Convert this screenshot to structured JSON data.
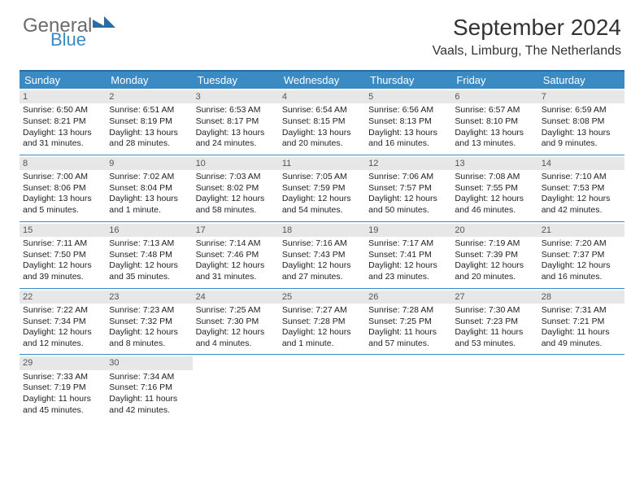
{
  "logo": {
    "part1": "General",
    "part2": "Blue"
  },
  "title": "September 2024",
  "location": "Vaals, Limburg, The Netherlands",
  "colors": {
    "header_bg": "#3a8ac4",
    "header_border": "#2b6ca3",
    "daynum_bg": "#e7e7e7",
    "text": "#222222"
  },
  "day_names": [
    "Sunday",
    "Monday",
    "Tuesday",
    "Wednesday",
    "Thursday",
    "Friday",
    "Saturday"
  ],
  "days": [
    {
      "n": 1,
      "sr": "6:50 AM",
      "ss": "8:21 PM",
      "dl": "13 hours and 31 minutes."
    },
    {
      "n": 2,
      "sr": "6:51 AM",
      "ss": "8:19 PM",
      "dl": "13 hours and 28 minutes."
    },
    {
      "n": 3,
      "sr": "6:53 AM",
      "ss": "8:17 PM",
      "dl": "13 hours and 24 minutes."
    },
    {
      "n": 4,
      "sr": "6:54 AM",
      "ss": "8:15 PM",
      "dl": "13 hours and 20 minutes."
    },
    {
      "n": 5,
      "sr": "6:56 AM",
      "ss": "8:13 PM",
      "dl": "13 hours and 16 minutes."
    },
    {
      "n": 6,
      "sr": "6:57 AM",
      "ss": "8:10 PM",
      "dl": "13 hours and 13 minutes."
    },
    {
      "n": 7,
      "sr": "6:59 AM",
      "ss": "8:08 PM",
      "dl": "13 hours and 9 minutes."
    },
    {
      "n": 8,
      "sr": "7:00 AM",
      "ss": "8:06 PM",
      "dl": "13 hours and 5 minutes."
    },
    {
      "n": 9,
      "sr": "7:02 AM",
      "ss": "8:04 PM",
      "dl": "13 hours and 1 minute."
    },
    {
      "n": 10,
      "sr": "7:03 AM",
      "ss": "8:02 PM",
      "dl": "12 hours and 58 minutes."
    },
    {
      "n": 11,
      "sr": "7:05 AM",
      "ss": "7:59 PM",
      "dl": "12 hours and 54 minutes."
    },
    {
      "n": 12,
      "sr": "7:06 AM",
      "ss": "7:57 PM",
      "dl": "12 hours and 50 minutes."
    },
    {
      "n": 13,
      "sr": "7:08 AM",
      "ss": "7:55 PM",
      "dl": "12 hours and 46 minutes."
    },
    {
      "n": 14,
      "sr": "7:10 AM",
      "ss": "7:53 PM",
      "dl": "12 hours and 42 minutes."
    },
    {
      "n": 15,
      "sr": "7:11 AM",
      "ss": "7:50 PM",
      "dl": "12 hours and 39 minutes."
    },
    {
      "n": 16,
      "sr": "7:13 AM",
      "ss": "7:48 PM",
      "dl": "12 hours and 35 minutes."
    },
    {
      "n": 17,
      "sr": "7:14 AM",
      "ss": "7:46 PM",
      "dl": "12 hours and 31 minutes."
    },
    {
      "n": 18,
      "sr": "7:16 AM",
      "ss": "7:43 PM",
      "dl": "12 hours and 27 minutes."
    },
    {
      "n": 19,
      "sr": "7:17 AM",
      "ss": "7:41 PM",
      "dl": "12 hours and 23 minutes."
    },
    {
      "n": 20,
      "sr": "7:19 AM",
      "ss": "7:39 PM",
      "dl": "12 hours and 20 minutes."
    },
    {
      "n": 21,
      "sr": "7:20 AM",
      "ss": "7:37 PM",
      "dl": "12 hours and 16 minutes."
    },
    {
      "n": 22,
      "sr": "7:22 AM",
      "ss": "7:34 PM",
      "dl": "12 hours and 12 minutes."
    },
    {
      "n": 23,
      "sr": "7:23 AM",
      "ss": "7:32 PM",
      "dl": "12 hours and 8 minutes."
    },
    {
      "n": 24,
      "sr": "7:25 AM",
      "ss": "7:30 PM",
      "dl": "12 hours and 4 minutes."
    },
    {
      "n": 25,
      "sr": "7:27 AM",
      "ss": "7:28 PM",
      "dl": "12 hours and 1 minute."
    },
    {
      "n": 26,
      "sr": "7:28 AM",
      "ss": "7:25 PM",
      "dl": "11 hours and 57 minutes."
    },
    {
      "n": 27,
      "sr": "7:30 AM",
      "ss": "7:23 PM",
      "dl": "11 hours and 53 minutes."
    },
    {
      "n": 28,
      "sr": "7:31 AM",
      "ss": "7:21 PM",
      "dl": "11 hours and 49 minutes."
    },
    {
      "n": 29,
      "sr": "7:33 AM",
      "ss": "7:19 PM",
      "dl": "11 hours and 45 minutes."
    },
    {
      "n": 30,
      "sr": "7:34 AM",
      "ss": "7:16 PM",
      "dl": "11 hours and 42 minutes."
    }
  ],
  "labels": {
    "sunrise": "Sunrise:",
    "sunset": "Sunset:",
    "daylight": "Daylight:"
  },
  "start_weekday": 0,
  "weeks": 5
}
